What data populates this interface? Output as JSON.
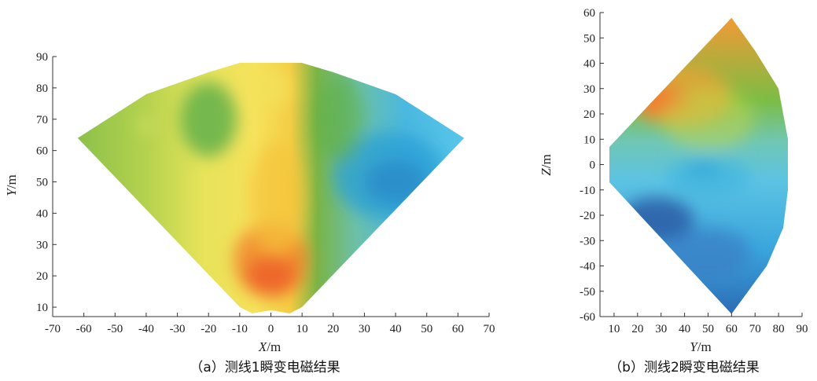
{
  "chart_data": [
    {
      "type": "heatmap",
      "caption": "（a）测线1瞬变电磁结果",
      "xlabel_var": "X",
      "xlabel_unit": "/m",
      "ylabel_var": "Y",
      "ylabel_unit": "/m",
      "xlim": [
        -70,
        70
      ],
      "ylim": [
        7,
        90
      ],
      "xticks": [
        -70,
        -60,
        -50,
        -40,
        -30,
        -20,
        -10,
        0,
        10,
        20,
        30,
        40,
        50,
        60,
        70
      ],
      "yticks": [
        10,
        20,
        30,
        40,
        50,
        60,
        70,
        80,
        90
      ],
      "boundary": [
        [
          -62,
          64
        ],
        [
          -40,
          78
        ],
        [
          -20,
          85
        ],
        [
          -10,
          88
        ],
        [
          0,
          88
        ],
        [
          10,
          88
        ],
        [
          20,
          85
        ],
        [
          40,
          78
        ],
        [
          62,
          64
        ],
        [
          10,
          10
        ],
        [
          6,
          8
        ],
        [
          0,
          9
        ],
        [
          -6,
          8
        ],
        [
          -10,
          10
        ]
      ],
      "blobs": [
        {
          "x": 40,
          "y": 50,
          "rx": 10,
          "ry": 7,
          "color": "#2e5fa8",
          "opacity": 0.95
        },
        {
          "x": 38,
          "y": 52,
          "rx": 18,
          "ry": 14,
          "color": "#2a9fd6",
          "opacity": 0.75
        },
        {
          "x": 0,
          "y": 20,
          "rx": 8,
          "ry": 6,
          "color": "#e8332a",
          "opacity": 1.0
        },
        {
          "x": 0,
          "y": 25,
          "rx": 12,
          "ry": 12,
          "color": "#f07a2a",
          "opacity": 0.75
        },
        {
          "x": 2,
          "y": 45,
          "rx": 9,
          "ry": 18,
          "color": "#f5c53a",
          "opacity": 0.7
        },
        {
          "x": -20,
          "y": 70,
          "rx": 9,
          "ry": 12,
          "color": "#62b04a",
          "opacity": 0.85
        },
        {
          "x": -40,
          "y": 68,
          "rx": 2,
          "ry": 2,
          "color": "#dbe46a",
          "opacity": 1.0
        },
        {
          "x": 22,
          "y": 70,
          "rx": 8,
          "ry": 14,
          "color": "#5aaf48",
          "opacity": 0.6
        },
        {
          "x": 0,
          "y": 80,
          "rx": 7,
          "ry": 6,
          "color": "#f2e35c",
          "opacity": 0.7
        }
      ]
    },
    {
      "type": "heatmap",
      "caption": "（b）测线2瞬变电磁结果",
      "xlabel_var": "Y",
      "xlabel_unit": "/m",
      "ylabel_var": "Z",
      "ylabel_unit": "/m",
      "xlim": [
        4,
        90
      ],
      "ylim": [
        -60,
        60
      ],
      "xticks": [
        10,
        20,
        30,
        40,
        50,
        60,
        70,
        80,
        90
      ],
      "yticks": [
        60,
        50,
        40,
        30,
        20,
        10,
        0,
        -10,
        -20,
        -30,
        -40,
        -50,
        -60
      ],
      "boundary": [
        [
          8,
          7
        ],
        [
          60,
          58
        ],
        [
          70,
          45
        ],
        [
          80,
          30
        ],
        [
          84,
          10
        ],
        [
          84,
          -10
        ],
        [
          82,
          -25
        ],
        [
          75,
          -40
        ],
        [
          60,
          -59
        ],
        [
          8,
          -7
        ]
      ],
      "blobs": [
        {
          "x": 30,
          "y": 25,
          "rx": 12,
          "ry": 6,
          "color": "#e8332a",
          "opacity": 1.0
        },
        {
          "x": 38,
          "y": 27,
          "rx": 22,
          "ry": 12,
          "color": "#f5a035",
          "opacity": 0.7
        },
        {
          "x": 50,
          "y": 18,
          "rx": 20,
          "ry": 12,
          "color": "#c6d64a",
          "opacity": 0.5
        },
        {
          "x": 48,
          "y": -2,
          "rx": 7,
          "ry": 3,
          "color": "#2a9fd6",
          "opacity": 0.95
        },
        {
          "x": 50,
          "y": -5,
          "rx": 18,
          "ry": 8,
          "color": "#3bb3e0",
          "opacity": 0.6
        },
        {
          "x": 28,
          "y": -22,
          "rx": 16,
          "ry": 9,
          "color": "#2e5fa8",
          "opacity": 0.9
        },
        {
          "x": 50,
          "y": -35,
          "rx": 18,
          "ry": 10,
          "color": "#3a7fc4",
          "opacity": 0.75
        }
      ]
    }
  ]
}
